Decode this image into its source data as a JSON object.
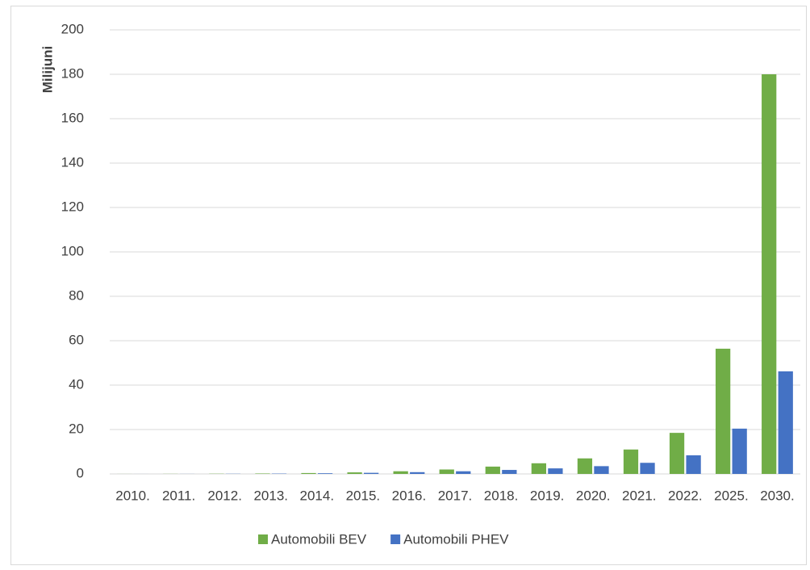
{
  "chart_data": {
    "type": "bar",
    "y_label": "Milijuni",
    "categories": [
      "2010.",
      "2011.",
      "2012.",
      "2013.",
      "2014.",
      "2015.",
      "2016.",
      "2017.",
      "2018.",
      "2019.",
      "2020.",
      "2021.",
      "2022.",
      "2025.",
      "2030."
    ],
    "series": [
      {
        "name": "Automobili BEV",
        "color": "#70ad47",
        "values": [
          0.02,
          0.05,
          0.1,
          0.2,
          0.4,
          0.7,
          1.2,
          2,
          3.3,
          4.8,
          7,
          11,
          18.5,
          56.4,
          180
        ]
      },
      {
        "name": "Automobili PHEV",
        "color": "#4472c4",
        "values": [
          0.01,
          0.03,
          0.08,
          0.15,
          0.3,
          0.5,
          0.8,
          1.2,
          1.8,
          2.5,
          3.5,
          5,
          8.4,
          20.4,
          46.2
        ]
      }
    ],
    "ylim": [
      0,
      200
    ],
    "yticks": [
      0,
      20,
      40,
      60,
      80,
      100,
      120,
      140,
      160,
      180,
      200
    ],
    "grid": true
  }
}
